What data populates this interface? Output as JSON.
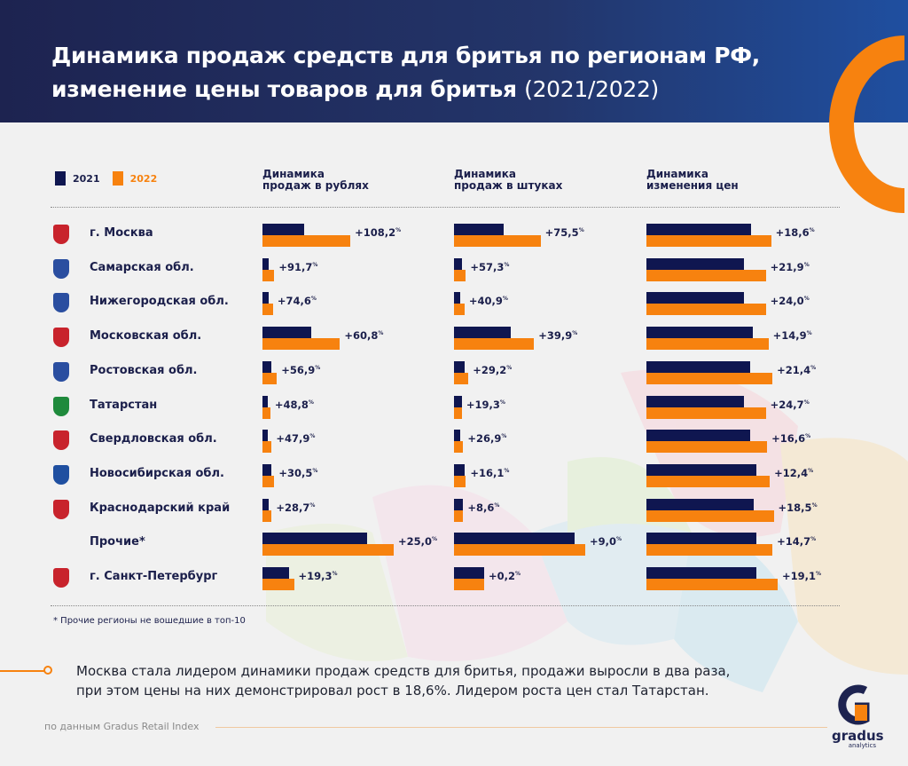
{
  "title": {
    "line1": "Динамика продаж средств для бритья по регионам РФ,",
    "line2": "изменение цены товаров для бритья",
    "years": "(2021/2022)"
  },
  "legend": [
    {
      "label": "2021",
      "color": "#0f1650"
    },
    {
      "label": "2022",
      "color": "#f7820f"
    }
  ],
  "columns": [
    {
      "line1": "Динамика",
      "line2": "продаж в рублях"
    },
    {
      "line1": "Динамика",
      "line2": "продаж в штуках"
    },
    {
      "line1": "Динамика",
      "line2": "изменения цен"
    }
  ],
  "chart_data": {
    "type": "bar",
    "orientation": "horizontal",
    "note": "Bars have no axis; bar lengths are relative index (longest bar in column = 100)",
    "categories": [
      "г. Москва",
      "Самарская обл.",
      "Нижегородская обл.",
      "Московская обл.",
      "Ростовская обл.",
      "Татарстан",
      "Свердловская обл.",
      "Новосибирская обл.",
      "Краснодарский край",
      "Прочие*",
      "г. Санкт-Петербург"
    ],
    "panels": [
      {
        "name": "Динамика продаж в рублях",
        "series": [
          {
            "name": "2021",
            "values": [
              32,
              5,
              5,
              37,
              7,
              4,
              4,
              7,
              5,
              80,
              20
            ]
          },
          {
            "name": "2022",
            "values": [
              67,
              9,
              8,
              59,
              11,
              6,
              7,
              9,
              7,
              100,
              24
            ]
          }
        ],
        "labels": [
          "+108,2",
          "+91,7",
          "+74,6",
          "+60,8",
          "+56,9",
          "+48,8",
          "+47,9",
          "+30,5",
          "+28,7",
          "+25,0",
          "+19,3"
        ]
      },
      {
        "name": "Динамика продаж в штуках",
        "series": [
          {
            "name": "2021",
            "values": [
              38,
              6,
              5,
              43,
              8,
              6,
              5,
              8,
              7,
              92,
              23
            ]
          },
          {
            "name": "2022",
            "values": [
              66,
              9,
              8,
              61,
              11,
              6,
              7,
              9,
              7,
              100,
              23
            ]
          }
        ],
        "labels": [
          "+75,5",
          "+57,3",
          "+40,9",
          "+39,9",
          "+29,2",
          "+19,3",
          "+26,9",
          "+16,1",
          "+8,6",
          "+9,0",
          "+0,2"
        ]
      },
      {
        "name": "Динамика изменения цен",
        "series": [
          {
            "name": "2021",
            "values": [
              80,
              74,
              74,
              81,
              79,
              74,
              79,
              84,
              82,
              84,
              84
            ]
          },
          {
            "name": "2022",
            "values": [
              95,
              91,
              91,
              93,
              96,
              91,
              92,
              94,
              97,
              96,
              100
            ]
          }
        ],
        "labels": [
          "+18,6",
          "+21,9",
          "+24,0",
          "+14,9",
          "+21,4",
          "+24,7",
          "+16,6",
          "+12,4",
          "+18,5",
          "+14,7",
          "+19,1"
        ]
      }
    ],
    "unit": "%"
  },
  "emblems": [
    "#c8232c",
    "#2a4ea0",
    "#2a4ea0",
    "#c8232c",
    "#2a4ea0",
    "#1f8a3c",
    "#c8232c",
    "#1f4fa0",
    "#c8232c",
    "",
    "#c8232c"
  ],
  "footnote": "* Прочие регионы не вошедшие в топ-10",
  "insight": {
    "line1": "Москва стала лидером динамики продаж средств для бритья, продажи выросли в два раза,",
    "line2": "при этом цены на них демонстрировал рост в 18,6%. Лидером роста цен стал Татарстан."
  },
  "source": "по данным Gradus Retail Index",
  "logo": {
    "name": "gradus",
    "sub": "analytics"
  }
}
